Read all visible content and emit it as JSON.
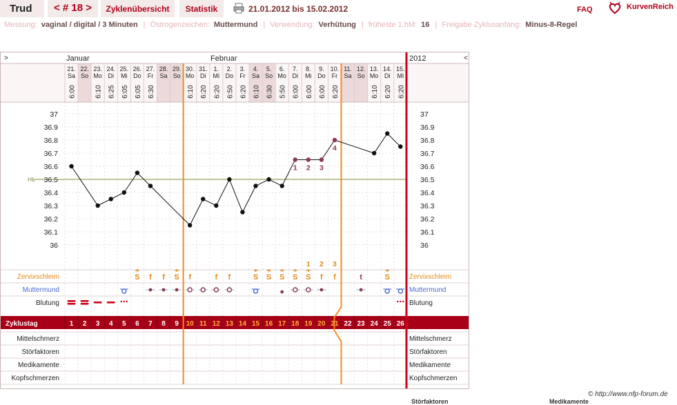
{
  "header": {
    "user": "Trud",
    "cycle_nav": "< # 18 >",
    "tab_overview": "Zyklenübersicht",
    "tab_stats": "Statistik",
    "date_range": "21.01.2012 bis 15.02.2012",
    "faq": "FAQ",
    "logo": "KurvenReich"
  },
  "info": {
    "messung_label": "Messung:",
    "messung_value": "vaginal / digital / 3 Minuten",
    "oestrogen_label": "Östrogenzeichen:",
    "oestrogen_value": "Muttermund",
    "verwendung_label": "Verwendung:",
    "verwendung_value": "Verhütung",
    "frueheste_label": "früheste 1.hM:",
    "frueheste_value": "16",
    "freigabe_label": "Freigabe Zyklusanfang:",
    "freigabe_value": "Minus-8-Regel"
  },
  "chart": {
    "nav_left": ">",
    "nav_right": "<",
    "month_january": "Januar",
    "month_february": "Februar",
    "year": "2012",
    "hl_label": "HL",
    "days": [
      {
        "date": "21.",
        "wd": "Sa",
        "time": "6:00",
        "cd": "1",
        "we": false
      },
      {
        "date": "22.",
        "wd": "So",
        "time": "",
        "cd": "2",
        "we": true
      },
      {
        "date": "23.",
        "wd": "Mo",
        "time": "6:10",
        "cd": "3",
        "we": false
      },
      {
        "date": "24.",
        "wd": "Di",
        "time": "6:25",
        "cd": "4",
        "we": false
      },
      {
        "date": "25.",
        "wd": "Mi",
        "time": "6:05",
        "cd": "5",
        "we": false
      },
      {
        "date": "26.",
        "wd": "Do",
        "time": "6:05",
        "cd": "6",
        "we": false
      },
      {
        "date": "27.",
        "wd": "Fr",
        "time": "6:30",
        "cd": "7",
        "we": false
      },
      {
        "date": "28.",
        "wd": "Sa",
        "time": "",
        "cd": "8",
        "we": true
      },
      {
        "date": "29.",
        "wd": "So",
        "time": "",
        "cd": "9",
        "we": true
      },
      {
        "date": "30.",
        "wd": "Mo",
        "time": "6:10",
        "cd": "10",
        "we": false
      },
      {
        "date": "31.",
        "wd": "Di",
        "time": "6:20",
        "cd": "11",
        "we": false
      },
      {
        "date": "1.",
        "wd": "Mi",
        "time": "6:20",
        "cd": "12",
        "we": false
      },
      {
        "date": "2.",
        "wd": "Do",
        "time": "6:50",
        "cd": "13",
        "we": false
      },
      {
        "date": "3.",
        "wd": "Fr",
        "time": "6:20",
        "cd": "14",
        "we": false
      },
      {
        "date": "4.",
        "wd": "Sa",
        "time": "6:10",
        "cd": "15",
        "we": true
      },
      {
        "date": "5.",
        "wd": "So",
        "time": "6:30",
        "cd": "16",
        "we": true
      },
      {
        "date": "6.",
        "wd": "Mo",
        "time": "5:50",
        "cd": "17",
        "we": false
      },
      {
        "date": "7.",
        "wd": "Di",
        "time": "6:00",
        "cd": "18",
        "we": false
      },
      {
        "date": "8.",
        "wd": "Mi",
        "time": "6:00",
        "cd": "19",
        "we": false
      },
      {
        "date": "9.",
        "wd": "Do",
        "time": "6:00",
        "cd": "20",
        "we": false
      },
      {
        "date": "10.",
        "wd": "Fr",
        "time": "6:20",
        "cd": "21",
        "we": false
      },
      {
        "date": "11.",
        "wd": "Sa",
        "time": "",
        "cd": "22",
        "we": true
      },
      {
        "date": "12.",
        "wd": "So",
        "time": "",
        "cd": "23",
        "we": true
      },
      {
        "date": "13.",
        "wd": "Mo",
        "time": "6:10",
        "cd": "24",
        "we": false
      },
      {
        "date": "14.",
        "wd": "Di",
        "time": "6:20",
        "cd": "25",
        "we": false
      },
      {
        "date": "15.",
        "wd": "Mi",
        "time": "6:20",
        "cd": "26",
        "we": false
      }
    ],
    "temp_ticks": [
      "37",
      "36.9",
      "36.8",
      "36.7",
      "36.6",
      "36.5",
      "36.4",
      "36.3",
      "36.2",
      "36.1",
      "36"
    ],
    "temps": [
      36.6,
      null,
      36.3,
      36.35,
      36.4,
      36.55,
      36.45,
      null,
      null,
      36.15,
      36.35,
      36.3,
      36.5,
      36.25,
      36.45,
      36.5,
      36.45,
      36.65,
      36.65,
      36.65,
      36.8,
      null,
      null,
      36.7,
      36.85,
      36.75
    ],
    "high_labels": [
      "1",
      "2",
      "3",
      "4"
    ],
    "mucus_counts": [
      "1",
      "2",
      "3"
    ],
    "cervical_mucus": [
      "",
      "",
      "",
      "",
      "",
      "S",
      "f",
      "f",
      "S",
      "f",
      "",
      "f",
      "f",
      "",
      "S",
      "S",
      "S",
      "S",
      "S",
      "f",
      "f",
      "",
      "t",
      "",
      "S",
      ""
    ],
    "row_labels": {
      "cervical_mucus": "Zervixschleim",
      "cervix": "Muttermund",
      "bleeding": "Blutung",
      "cycle_day": "Zyklustag",
      "mittelschmerz": "Mittelschmerz",
      "disturbances": "Störfaktoren",
      "medication": "Medikamente",
      "headache": "Kopfschmerzen"
    }
  },
  "footer": {
    "copyright": "© http://www.nfp-forum.de",
    "bottom_left": "Störfaktoren",
    "bottom_right": "Medikamente"
  },
  "colors": {
    "accent": "#b00018",
    "orange": "#f28c1e",
    "hl": "#7a8a3a",
    "cervix_blue": "#4a6acf",
    "mucus": "#e08a1a"
  }
}
